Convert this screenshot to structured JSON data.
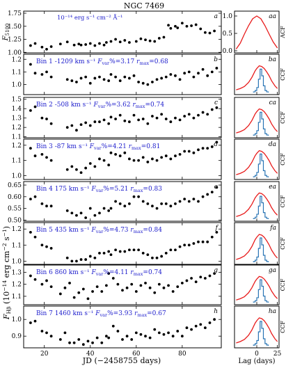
{
  "figure": {
    "title": "NGC 7469",
    "xlabel": "JD (−2458755 days)",
    "xticks": [
      20,
      40,
      60,
      80
    ],
    "xlim": [
      11,
      97
    ],
    "lag_xlabel": "Lag (days)",
    "lag_xticks": [
      0,
      25
    ],
    "lag_xlim": [
      -27,
      27
    ],
    "ylabel_shared": "F_Hβ (10^-14 erg cm^-2 s^-1)",
    "ylabel_shared_parts": [
      "F",
      "Hβ",
      " (10",
      "−14",
      " erg cm",
      "−2",
      " s",
      "−1",
      ")"
    ],
    "colors": {
      "text_blue": "#1c1ccc",
      "acf": "#e81b1b",
      "ccf_red": "#e81b1b",
      "ccf_blue": "#2874b4",
      "points": "#000000",
      "error": "#9a9a9a"
    }
  },
  "chart_data": [
    {
      "type": "scatter",
      "panel": "a",
      "ylabel": "F5100",
      "ylabel_main": "F",
      "ylabel_sub": "5100",
      "ylim": [
        0.99,
        1.79
      ],
      "yticks": [
        1.0,
        1.25,
        1.5,
        1.75
      ],
      "ytick_labels": [
        "1.00",
        "1.25",
        "1.50",
        "1.75"
      ],
      "unit_text": "10⁻¹⁴ erg s⁻¹ cm⁻² Å⁻¹",
      "x": [
        14,
        16,
        19,
        21,
        23,
        27,
        30,
        33,
        35,
        36,
        38,
        40,
        42,
        44,
        46,
        47,
        49,
        51,
        53,
        55,
        57,
        60,
        62,
        64,
        66,
        68,
        70,
        72,
        74,
        75,
        77,
        78,
        80,
        82,
        84,
        86,
        88,
        90,
        92,
        94
      ],
      "y": [
        1.13,
        1.17,
        1.1,
        1.06,
        1.11,
        1.16,
        1.2,
        1.14,
        1.16,
        1.14,
        1.15,
        1.17,
        1.13,
        1.17,
        1.14,
        1.19,
        1.21,
        1.25,
        1.2,
        1.23,
        1.19,
        1.21,
        1.26,
        1.24,
        1.22,
        1.21,
        1.27,
        1.29,
        1.52,
        1.46,
        1.5,
        1.47,
        1.56,
        1.5,
        1.51,
        1.53,
        1.45,
        1.38,
        1.37,
        1.41
      ]
    },
    {
      "type": "scatter",
      "panel": "b",
      "bin": "Bin 1",
      "velocity": "-1209 km s⁻¹",
      "fvar": "3.17",
      "rmax": "0.68",
      "ylim": [
        0.92,
        1.24
      ],
      "yticks": [
        1.0,
        1.1,
        1.2
      ],
      "ytick_labels": [
        "1.0",
        "1.1",
        "1.2"
      ],
      "x": [
        14,
        16,
        19,
        21,
        23,
        30,
        32,
        34,
        36,
        38,
        40,
        42,
        44,
        46,
        48,
        49,
        51,
        53,
        55,
        57,
        59,
        61,
        63,
        65,
        67,
        69,
        71,
        73,
        75,
        77,
        79,
        81,
        83,
        85,
        87,
        89,
        91,
        93,
        95
      ],
      "y": [
        1.16,
        1.09,
        1.08,
        1.1,
        1.06,
        1.04,
        1.03,
        1.02,
        1.05,
        1.06,
        1.01,
        1.05,
        1.06,
        1.04,
        1.03,
        1.08,
        1.06,
        1.03,
        1.06,
        1.05,
        1.07,
        1.02,
        1.01,
        1.0,
        1.02,
        1.04,
        1.05,
        1.06,
        1.08,
        1.07,
        1.04,
        1.09,
        1.1,
        1.06,
        1.09,
        1.12,
        1.07,
        1.1,
        1.13
      ]
    },
    {
      "type": "scatter",
      "panel": "c",
      "bin": "Bin 2",
      "velocity": "-508 km s⁻¹",
      "fvar": "3.62",
      "rmax": "0.74",
      "ylim": [
        1.09,
        1.52
      ],
      "yticks": [
        1.1,
        1.2,
        1.3,
        1.4,
        1.5
      ],
      "ytick_labels": [
        "1.1",
        "1.2",
        "1.3",
        "1.4",
        "1.5"
      ],
      "x": [
        14,
        16,
        19,
        21,
        23,
        30,
        32,
        34,
        36,
        38,
        40,
        42,
        44,
        46,
        48,
        49,
        51,
        53,
        55,
        57,
        59,
        61,
        63,
        65,
        67,
        69,
        71,
        73,
        75,
        77,
        79,
        81,
        83,
        85,
        87,
        89,
        91,
        93,
        95
      ],
      "y": [
        1.38,
        1.42,
        1.3,
        1.29,
        1.24,
        1.2,
        1.22,
        1.17,
        1.23,
        1.25,
        1.22,
        1.26,
        1.26,
        1.28,
        1.24,
        1.31,
        1.29,
        1.33,
        1.27,
        1.26,
        1.33,
        1.28,
        1.29,
        1.24,
        1.32,
        1.3,
        1.34,
        1.29,
        1.26,
        1.3,
        1.28,
        1.32,
        1.34,
        1.3,
        1.33,
        1.36,
        1.34,
        1.39,
        1.41
      ]
    },
    {
      "type": "scatter",
      "panel": "d",
      "bin": "Bin 3",
      "velocity": "-87 km s⁻¹",
      "fvar": "4.21",
      "rmax": "0.81",
      "ylim": [
        0.975,
        1.24
      ],
      "yticks": [
        1.0,
        1.1,
        1.2
      ],
      "ytick_labels": [
        "1.0",
        "1.1",
        "1.2"
      ],
      "x": [
        14,
        16,
        19,
        21,
        23,
        30,
        32,
        34,
        36,
        38,
        40,
        42,
        44,
        46,
        48,
        49,
        51,
        53,
        55,
        57,
        59,
        61,
        63,
        65,
        67,
        69,
        71,
        73,
        75,
        77,
        79,
        81,
        83,
        85,
        87,
        89,
        91,
        93,
        95
      ],
      "y": [
        1.18,
        1.13,
        1.14,
        1.12,
        1.1,
        1.04,
        1.06,
        1.04,
        1.02,
        1.05,
        1.08,
        1.06,
        1.11,
        1.1,
        1.07,
        1.15,
        1.14,
        1.13,
        1.15,
        1.11,
        1.1,
        1.1,
        1.12,
        1.09,
        1.11,
        1.1,
        1.12,
        1.13,
        1.11,
        1.13,
        1.14,
        1.16,
        1.16,
        1.15,
        1.17,
        1.18,
        1.18,
        1.19,
        1.22
      ]
    },
    {
      "type": "scatter",
      "panel": "e",
      "bin": "Bin 4",
      "velocity": "175 km s⁻¹",
      "fvar": "5.21",
      "rmax": "0.83",
      "ylim": [
        0.495,
        0.665
      ],
      "yticks": [
        0.5,
        0.55,
        0.6,
        0.65
      ],
      "ytick_labels": [
        "0.50",
        "0.55",
        "0.60",
        "0.65"
      ],
      "x": [
        14,
        16,
        19,
        21,
        23,
        30,
        32,
        34,
        36,
        38,
        40,
        42,
        44,
        46,
        48,
        49,
        51,
        53,
        55,
        57,
        59,
        61,
        63,
        65,
        67,
        69,
        71,
        73,
        75,
        77,
        79,
        81,
        83,
        85,
        87,
        89,
        91,
        93,
        95
      ],
      "y": [
        0.59,
        0.6,
        0.57,
        0.56,
        0.56,
        0.54,
        0.53,
        0.52,
        0.53,
        0.51,
        0.55,
        0.52,
        0.53,
        0.55,
        0.54,
        0.55,
        0.58,
        0.57,
        0.56,
        0.57,
        0.6,
        0.6,
        0.58,
        0.57,
        0.56,
        0.55,
        0.57,
        0.57,
        0.56,
        0.57,
        0.58,
        0.59,
        0.58,
        0.59,
        0.58,
        0.6,
        0.61,
        0.62,
        0.64
      ]
    },
    {
      "type": "scatter",
      "panel": "f",
      "bin": "Bin 5",
      "velocity": "435 km s⁻¹",
      "fvar": "4.73",
      "rmax": "0.84",
      "ylim": [
        0.98,
        1.24
      ],
      "yticks": [
        1.0,
        1.1,
        1.2
      ],
      "ytick_labels": [
        "1.0",
        "1.1",
        "1.2"
      ],
      "x": [
        14,
        16,
        19,
        21,
        23,
        30,
        32,
        34,
        36,
        38,
        40,
        42,
        44,
        46,
        48,
        49,
        51,
        53,
        55,
        57,
        59,
        61,
        63,
        65,
        67,
        69,
        71,
        73,
        75,
        77,
        79,
        81,
        83,
        85,
        87,
        89,
        91,
        93,
        95
      ],
      "y": [
        1.18,
        1.15,
        1.1,
        1.09,
        1.08,
        1.02,
        1.0,
        1.0,
        1.01,
        1.01,
        1.03,
        1.02,
        1.05,
        1.05,
        1.06,
        1.04,
        1.07,
        1.06,
        1.06,
        1.07,
        1.07,
        1.07,
        1.05,
        1.04,
        1.02,
        1.02,
        1.03,
        1.05,
        1.07,
        1.07,
        1.09,
        1.1,
        1.1,
        1.11,
        1.12,
        1.12,
        1.12,
        1.15,
        1.18
      ]
    },
    {
      "type": "scatter",
      "panel": "g",
      "bin": "Bin 6",
      "velocity": "860 km s⁻¹",
      "fvar": "4.11",
      "rmax": "0.74",
      "ylim": [
        1.03,
        1.36
      ],
      "yticks": [
        1.1,
        1.2,
        1.3
      ],
      "ytick_labels": [
        "1.1",
        "1.2",
        "1.3"
      ],
      "x": [
        14,
        16,
        19,
        21,
        23,
        27,
        29,
        31,
        33,
        35,
        37,
        39,
        41,
        43,
        45,
        47,
        48,
        50,
        52,
        54,
        56,
        58,
        60,
        62,
        64,
        66,
        68,
        70,
        72,
        74,
        76,
        78,
        80,
        82,
        84,
        86,
        88,
        90,
        92,
        94
      ],
      "y": [
        1.27,
        1.24,
        1.2,
        1.23,
        1.18,
        1.12,
        1.17,
        1.21,
        1.09,
        1.13,
        1.16,
        1.08,
        1.14,
        1.18,
        1.14,
        1.19,
        1.29,
        1.25,
        1.2,
        1.15,
        1.17,
        1.2,
        1.14,
        1.19,
        1.21,
        1.17,
        1.13,
        1.2,
        1.17,
        1.19,
        1.14,
        1.18,
        1.21,
        1.23,
        1.25,
        1.22,
        1.26,
        1.25,
        1.27,
        1.29
      ]
    },
    {
      "type": "scatter",
      "panel": "h",
      "bin": "Bin 7",
      "velocity": "1460 km s⁻¹",
      "fvar": "3.93",
      "rmax": "0.67",
      "ylim": [
        0.83,
        1.08
      ],
      "yticks": [
        0.9,
        1.0
      ],
      "ytick_labels": [
        "0.9",
        "1.0"
      ],
      "x": [
        14,
        16,
        19,
        21,
        23,
        27,
        29,
        31,
        33,
        35,
        37,
        39,
        41,
        43,
        45,
        47,
        48,
        50,
        52,
        54,
        56,
        58,
        60,
        62,
        64,
        66,
        68,
        70,
        72,
        74,
        76,
        78,
        80,
        82,
        84,
        86,
        88,
        90,
        92,
        94
      ],
      "y": [
        0.98,
        0.99,
        0.93,
        0.92,
        0.9,
        0.88,
        0.92,
        0.86,
        0.86,
        0.88,
        0.85,
        0.87,
        0.86,
        0.89,
        0.86,
        0.9,
        0.89,
        0.96,
        0.93,
        0.88,
        0.9,
        0.88,
        0.92,
        0.91,
        0.9,
        0.89,
        0.94,
        0.92,
        0.91,
        0.92,
        0.9,
        0.93,
        0.9,
        0.95,
        0.94,
        0.96,
        0.97,
        0.95,
        0.98,
        1.0
      ]
    }
  ],
  "lag_panels": [
    {
      "label": "aa",
      "side": "ACF",
      "acf": true,
      "yticks": [
        0.0,
        0.5,
        1.0
      ],
      "ytick_labels": [
        "0.0",
        "0.5",
        "1.0"
      ]
    },
    {
      "label": "ba",
      "side": "CCF"
    },
    {
      "label": "ca",
      "side": "CCF"
    },
    {
      "label": "da",
      "side": "CCF"
    },
    {
      "label": "ea",
      "side": "CCF"
    },
    {
      "label": "fa",
      "side": "CCF"
    },
    {
      "label": "ga",
      "side": "CCF"
    },
    {
      "label": "ha",
      "side": "CCF"
    }
  ],
  "lag_curves": {
    "acf_x": [
      -25,
      -20,
      -15,
      -10,
      -5,
      0,
      5,
      10,
      15,
      20,
      25
    ],
    "acf_y": [
      0.05,
      0.22,
      0.48,
      0.72,
      0.92,
      1.0,
      0.92,
      0.72,
      0.48,
      0.25,
      0.08
    ],
    "ccf_x": [
      -25,
      -20,
      -15,
      -10,
      -6,
      -2,
      0,
      3,
      6,
      9,
      12,
      15,
      18,
      22,
      25
    ],
    "ccf_y": [
      0.08,
      0.12,
      0.18,
      0.3,
      0.45,
      0.65,
      0.72,
      0.8,
      0.78,
      0.72,
      0.62,
      0.5,
      0.35,
      0.2,
      0.12
    ],
    "hist_edges": [
      -4,
      -2,
      0,
      2,
      4,
      6,
      8,
      10,
      12,
      14
    ],
    "hist_vals": [
      0.02,
      0.06,
      0.15,
      0.4,
      0.7,
      0.5,
      0.2,
      0.06,
      0.02
    ]
  }
}
